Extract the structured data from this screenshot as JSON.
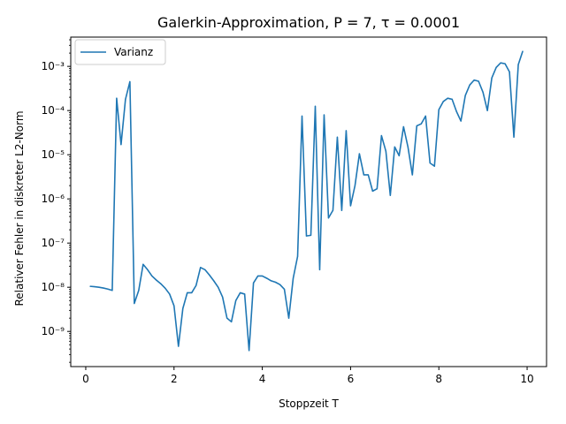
{
  "chart_data": {
    "type": "line",
    "title": "Galerkin-Approximation, P = 7, τ = 0.0001",
    "xlabel": "Stoppzeit T",
    "ylabel": "Relativer Fehler in diskreter L2-Norm",
    "xlim": [
      -0.34,
      10.44
    ],
    "ylim": [
      1.6e-10,
      0.0046
    ],
    "yscale": "log",
    "grid": false,
    "legend_position": "upper-left",
    "x_ticks": [
      0,
      2,
      4,
      6,
      8,
      10
    ],
    "x_tick_labels": [
      "0",
      "2",
      "4",
      "6",
      "8",
      "10"
    ],
    "y_ticks": [
      1e-09,
      1e-08,
      1e-07,
      1e-06,
      1e-05,
      0.0001,
      0.001
    ],
    "y_tick_labels": [
      "10⁻⁹",
      "10⁻⁸",
      "10⁻⁷",
      "10⁻⁶",
      "10⁻⁵",
      "10⁻⁴",
      "10⁻³"
    ],
    "series": [
      {
        "name": "Varianz",
        "color": "#1f77b4",
        "x": [
          0.1,
          0.2,
          0.3,
          0.4,
          0.5,
          0.6,
          0.7,
          0.8,
          0.9,
          1.0,
          1.1,
          1.2,
          1.3,
          1.4,
          1.5,
          1.6,
          1.7,
          1.8,
          1.9,
          2.0,
          2.1,
          2.2,
          2.3,
          2.4,
          2.5,
          2.6,
          2.7,
          2.8,
          2.9,
          3.0,
          3.1,
          3.2,
          3.3,
          3.4,
          3.5,
          3.6,
          3.7,
          3.8,
          3.9,
          4.0,
          4.1,
          4.2,
          4.3,
          4.4,
          4.5,
          4.6,
          4.7,
          4.8,
          4.9,
          5.0,
          5.1,
          5.2,
          5.3,
          5.4,
          5.5,
          5.6,
          5.7,
          5.8,
          5.9,
          6.0,
          6.1,
          6.2,
          6.3,
          6.4,
          6.5,
          6.6,
          6.7,
          6.8,
          6.9,
          7.0,
          7.1,
          7.2,
          7.3,
          7.4,
          7.5,
          7.6,
          7.7,
          7.8,
          7.9,
          8.0,
          8.1,
          8.2,
          8.3,
          8.4,
          8.5,
          8.6,
          8.7,
          8.8,
          8.9,
          9.0,
          9.1,
          9.2,
          9.3,
          9.4,
          9.5,
          9.6,
          9.7,
          9.8,
          9.9
        ],
        "y": [
          1.05e-08,
          1.03e-08,
          1e-08,
          9.6e-09,
          9.1e-09,
          8.5e-09,
          0.00019,
          1.7e-05,
          0.00018,
          0.00045,
          4.3e-09,
          8.5e-09,
          3.3e-08,
          2.5e-08,
          1.8e-08,
          1.45e-08,
          1.2e-08,
          9.5e-09,
          7e-09,
          3.8e-09,
          4.6e-10,
          3.3e-09,
          7.5e-09,
          7.5e-09,
          1.1e-08,
          2.8e-08,
          2.5e-08,
          1.9e-08,
          1.4e-08,
          1e-08,
          6e-09,
          2e-09,
          1.65e-09,
          5e-09,
          7.5e-09,
          7e-09,
          3.7e-10,
          1.25e-08,
          1.8e-08,
          1.8e-08,
          1.6e-08,
          1.4e-08,
          1.3e-08,
          1.15e-08,
          9e-09,
          2e-09,
          1.6e-08,
          5e-08,
          7.5e-05,
          1.45e-07,
          1.5e-07,
          0.000125,
          2.5e-08,
          8e-05,
          3.7e-07,
          5.5e-07,
          2.5e-05,
          5.5e-07,
          3.5e-05,
          7e-07,
          2e-06,
          1.05e-05,
          3.5e-06,
          3.5e-06,
          1.5e-06,
          1.7e-06,
          2.7e-05,
          1.2e-05,
          1.2e-06,
          1.5e-05,
          9.5e-06,
          4.3e-05,
          1.5e-05,
          3.5e-06,
          4.5e-05,
          5e-05,
          7.5e-05,
          6.5e-06,
          5.5e-06,
          0.000105,
          0.00016,
          0.00019,
          0.00018,
          9.5e-05,
          5.8e-05,
          0.00022,
          0.00038,
          0.00049,
          0.00046,
          0.00026,
          0.0001,
          0.00055,
          0.00095,
          0.0012,
          0.00115,
          0.00075,
          2.5e-05,
          0.0011,
          0.0022
        ]
      }
    ]
  }
}
